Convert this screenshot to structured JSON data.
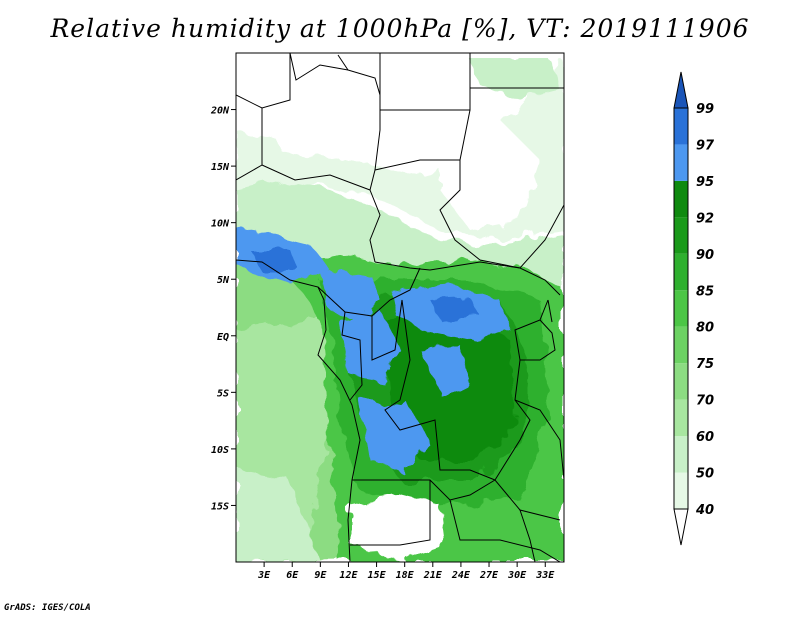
{
  "title": "Relative humidity at 1000hPa [%], VT: 2019111906",
  "credit": "GrADS: IGES/COLA",
  "map": {
    "lon_range": [
      0,
      35
    ],
    "lat_range": [
      -20,
      25
    ],
    "x_ticks": [
      "3E",
      "6E",
      "9E",
      "12E",
      "15E",
      "18E",
      "21E",
      "24E",
      "27E",
      "30E",
      "33E"
    ],
    "x_tick_values": [
      3,
      6,
      9,
      12,
      15,
      18,
      21,
      24,
      27,
      30,
      33
    ],
    "y_ticks": [
      "20N",
      "15N",
      "10N",
      "5N",
      "EQ",
      "5S",
      "10S",
      "15S"
    ],
    "y_tick_values": [
      20,
      15,
      10,
      5,
      0,
      -5,
      -10,
      -15
    ]
  },
  "colorbar": {
    "levels": [
      "40",
      "50",
      "60",
      "70",
      "75",
      "80",
      "85",
      "90",
      "92",
      "95",
      "97",
      "99"
    ],
    "colors": [
      "#ffffff",
      "#e6f8e6",
      "#c8f0c8",
      "#a8e6a0",
      "#8cdc82",
      "#6cd263",
      "#4cc646",
      "#2fb02f",
      "#1a9a1a",
      "#0f8a0f",
      "#4d98f0",
      "#2a72d8",
      "#1a55b8"
    ]
  }
}
